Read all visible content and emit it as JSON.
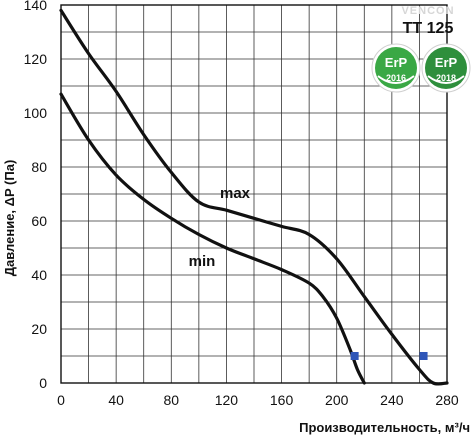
{
  "chart_data": {
    "type": "line",
    "model": "TT 125",
    "brand": "VENCON",
    "xlabel": "Производительность, м³/ч",
    "ylabel": "Давление, ΔP (Па)",
    "xlim": [
      0,
      280
    ],
    "ylim": [
      0,
      140
    ],
    "x_ticks": [
      0,
      40,
      80,
      120,
      160,
      200,
      240,
      280
    ],
    "y_ticks": [
      0,
      20,
      40,
      60,
      80,
      100,
      120,
      140
    ],
    "grid": true,
    "series": [
      {
        "name": "max",
        "x": [
          0,
          20,
          40,
          60,
          80,
          100,
          120,
          140,
          160,
          180,
          200,
          220,
          240,
          260,
          270,
          280
        ],
        "y": [
          138,
          122,
          108,
          92,
          78,
          67,
          64,
          61,
          58,
          55,
          46,
          32,
          18,
          5,
          0,
          0
        ],
        "marker": {
          "x": 263,
          "y": 10
        }
      },
      {
        "name": "min",
        "x": [
          0,
          20,
          40,
          60,
          80,
          100,
          120,
          140,
          160,
          180,
          190,
          200,
          210,
          215,
          220
        ],
        "y": [
          107,
          90,
          77,
          68,
          61,
          55,
          50,
          46,
          42,
          37,
          32,
          24,
          12,
          5,
          0
        ],
        "marker": {
          "x": 213,
          "y": 10
        }
      }
    ],
    "marker_color": "#2f56b8",
    "badges": [
      {
        "text": "ErP",
        "year": "2016",
        "color": "#3aa845"
      },
      {
        "text": "ErP",
        "year": "2018",
        "color": "#2e8f3c"
      }
    ]
  }
}
